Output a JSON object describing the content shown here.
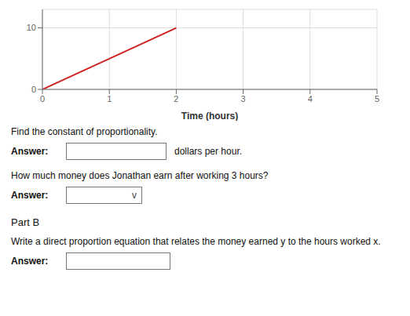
{
  "chart_data": {
    "type": "line",
    "x": [
      0,
      2
    ],
    "values": [
      0,
      10
    ],
    "color": "#cc2222",
    "xlim": [
      0,
      5
    ],
    "ylim": [
      0,
      13
    ],
    "xticks": [
      0,
      1,
      2,
      3,
      4,
      5
    ],
    "yticks": [
      0,
      10
    ],
    "xlabel": "Time (hours)",
    "grid": true,
    "annotations": [
      "Find the constant of proportionality.",
      "Answer:",
      "dollars per hour.",
      "How much money does Jonathan earn after working 3 hours?",
      "Answer:",
      "Part B",
      "Write a direct proportion equation that relates the money earned y to the hours worked x.",
      "Answer:",
      "v"
    ]
  }
}
